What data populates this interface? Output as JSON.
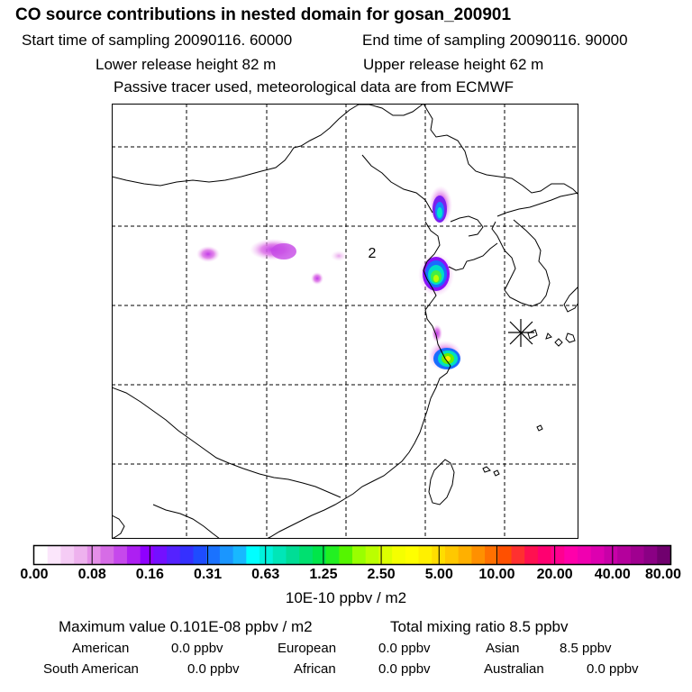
{
  "header": {
    "title": "CO  source contributions in nested domain for gosan_200901",
    "start_label": "Start time of sampling 20090116. 60000",
    "end_label": "End time of sampling 20090116. 90000",
    "lower_label": "Lower release height   82 m",
    "upper_label": "Upper release height   62 m",
    "tracer_label": "Passive tracer used, meteorological data are from ECMWF"
  },
  "map": {
    "annotation": "2",
    "receptor_marker": "star-icon"
  },
  "chart_data": {
    "type": "heatmap",
    "title": "CO  source contributions in nested domain for gosan_200901",
    "colorbar": {
      "ticks": [
        "0.00",
        "0.08",
        "0.16",
        "0.31",
        "0.63",
        "1.25",
        "2.50",
        "5.00",
        "10.00",
        "20.00",
        "40.00",
        "80.00"
      ],
      "units": "10E-10 ppbv / m2",
      "colors": [
        "#ffffff",
        "#fbe6fb",
        "#f5ccf5",
        "#eeb2ee",
        "#e48fe8",
        "#d66ce6",
        "#c648ec",
        "#ad1ff2",
        "#8f00ff",
        "#7410ff",
        "#5522ff",
        "#3530ff",
        "#1e4cff",
        "#1a72ff",
        "#1a96ff",
        "#18b8ff",
        "#00ffff",
        "#00f2dc",
        "#00e6b8",
        "#00dd96",
        "#00e070",
        "#00e64a",
        "#22f022",
        "#55f500",
        "#99ff00",
        "#bbff00",
        "#ddff00",
        "#f5ff00",
        "#ffff00",
        "#fff000",
        "#ffdd00",
        "#ffc800",
        "#ffb000",
        "#ff9000",
        "#ff7000",
        "#ff5000",
        "#ff3030",
        "#ff1050",
        "#ff0070",
        "#ff0090",
        "#ff00aa",
        "#f000b0",
        "#dd00b0",
        "#c800a8",
        "#b4009c",
        "#a00090",
        "#8a0084",
        "#70006e"
      ]
    }
  },
  "footer": {
    "max_value": "Maximum value  0.101E-08 ppbv / m2",
    "total_mixing": "Total mixing ratio       8.5 ppbv",
    "regions_row1": [
      {
        "name": "American",
        "value": "0.0 ppbv"
      },
      {
        "name": "European",
        "value": "0.0 ppbv"
      },
      {
        "name": "Asian",
        "value": "8.5 ppbv"
      }
    ],
    "regions_row2": [
      {
        "name": "South American",
        "value": "0.0 ppbv"
      },
      {
        "name": "African",
        "value": "0.0 ppbv"
      },
      {
        "name": "Australian",
        "value": "0.0 ppbv"
      }
    ]
  }
}
